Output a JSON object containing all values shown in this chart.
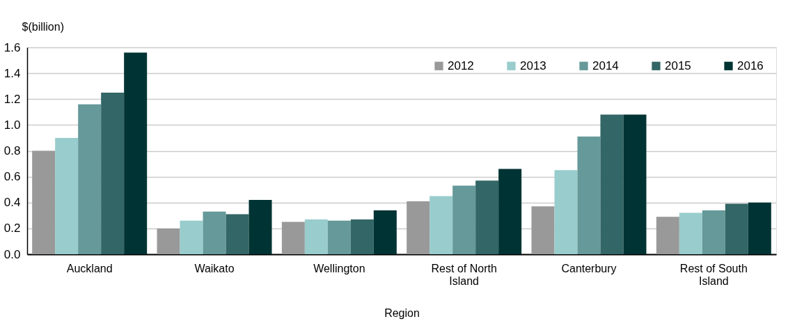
{
  "chart_data": {
    "type": "bar",
    "categories": [
      "Auckland",
      "Waikato",
      "Wellington",
      "Rest of North Island",
      "Canterbury",
      "Rest of South Island"
    ],
    "series": [
      {
        "name": "2012",
        "color": "#999999",
        "values": [
          0.8,
          0.2,
          0.25,
          0.41,
          0.37,
          0.29
        ]
      },
      {
        "name": "2013",
        "color": "#99cccc",
        "values": [
          0.9,
          0.26,
          0.27,
          0.45,
          0.65,
          0.32
        ]
      },
      {
        "name": "2014",
        "color": "#669999",
        "values": [
          1.16,
          0.33,
          0.26,
          0.53,
          0.91,
          0.34
        ]
      },
      {
        "name": "2015",
        "color": "#336666",
        "values": [
          1.25,
          0.31,
          0.27,
          0.57,
          1.08,
          0.39
        ]
      },
      {
        "name": "2016",
        "color": "#003333",
        "values": [
          1.56,
          0.42,
          0.34,
          0.66,
          1.08,
          0.4
        ]
      }
    ],
    "ylabel": "$(billion)",
    "xlabel": "Region",
    "ylim": [
      0,
      1.6
    ],
    "yticks": [
      {
        "value": 0,
        "label": "0.0"
      },
      0.2,
      0.4,
      0.6,
      0.8,
      {
        "value": 1,
        "label": "1.0"
      },
      1.2,
      1.4,
      1.6
    ],
    "grid": "y",
    "legend": "top right"
  }
}
